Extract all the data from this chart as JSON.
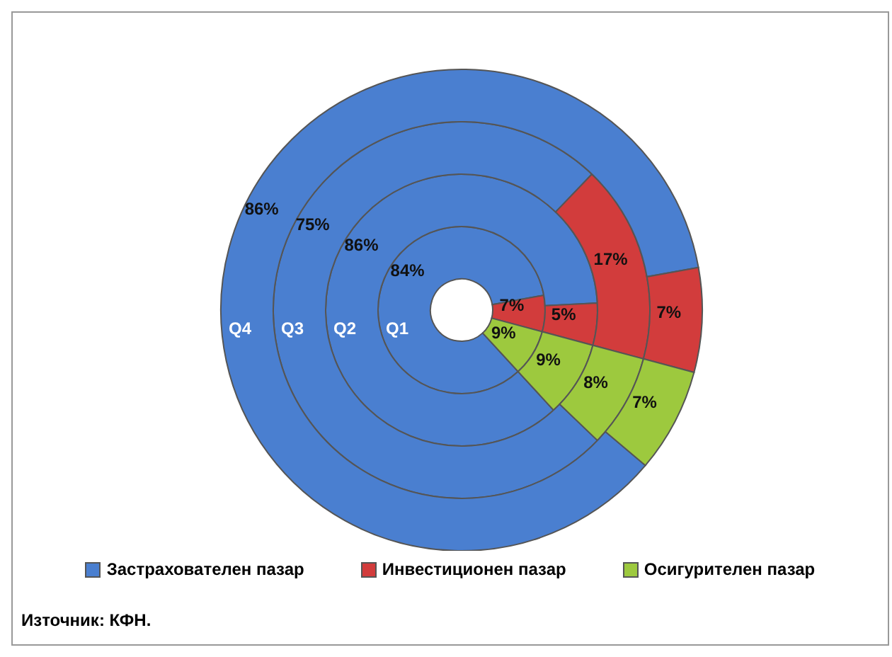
{
  "chart_data": {
    "type": "donut",
    "categories": [
      "Застрахователен пазар",
      "Инвестиционен пазар",
      "Осигурителен пазар"
    ],
    "colors": [
      "#4a7fd0",
      "#d23c3c",
      "#9dc93e"
    ],
    "series": [
      {
        "name": "Q1",
        "values": [
          84,
          7,
          9
        ],
        "value_labels": [
          "84%",
          "7%",
          "9%"
        ]
      },
      {
        "name": "Q2",
        "values": [
          86,
          5,
          9
        ],
        "value_labels": [
          "86%",
          "5%",
          "9%"
        ]
      },
      {
        "name": "Q3",
        "values": [
          75,
          17,
          8
        ],
        "value_labels": [
          "75%",
          "17%",
          "8%"
        ]
      },
      {
        "name": "Q4",
        "values": [
          86,
          7,
          7
        ],
        "value_labels": [
          "86%",
          "7%",
          "7%"
        ]
      }
    ],
    "legend": "bottom",
    "annotations": [
      "Източник: КФН."
    ]
  }
}
